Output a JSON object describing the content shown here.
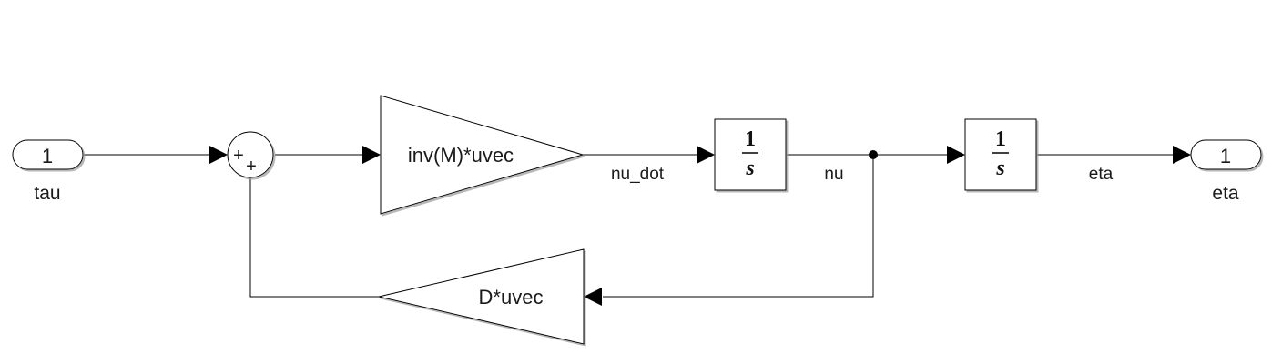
{
  "inport": {
    "number": "1",
    "label": "tau"
  },
  "outport": {
    "number": "1",
    "label": "eta"
  },
  "sum_block": {
    "signs_top": "+",
    "signs_bottom": "+"
  },
  "gain_forward": {
    "expression": "inv(M)*uvec"
  },
  "gain_feedback": {
    "expression": "D*uvec"
  },
  "integrator_1": {
    "numerator": "1",
    "denominator": "s"
  },
  "integrator_2": {
    "numerator": "1",
    "denominator": "s"
  },
  "signals": {
    "nu_dot": "nu_dot",
    "nu": "nu",
    "eta": "eta"
  }
}
